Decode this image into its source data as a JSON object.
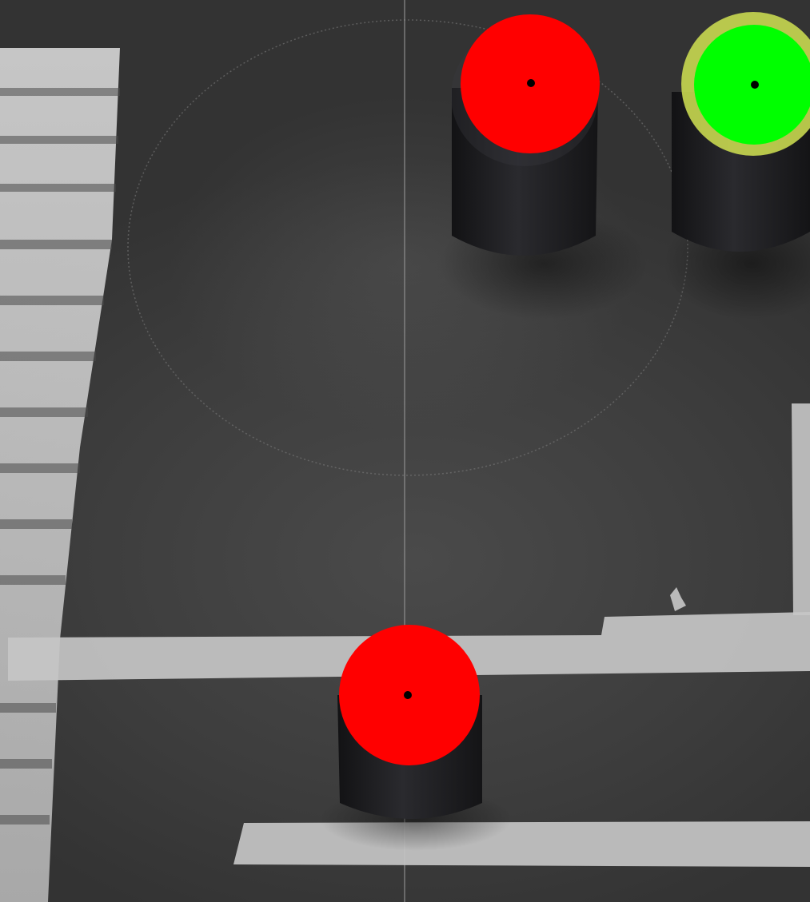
{
  "scene": {
    "description_kind": "top-down photo of cylindrical pucks on a dark mat",
    "colors": {
      "mat": "#404040",
      "tape": "#c9c9c9",
      "puck_body": "#1f1f22",
      "marker_red": "#ff0000",
      "marker_green": "#00ff00",
      "center_dot": "#000000"
    },
    "markers": [
      {
        "id": "red-marker-top",
        "color": "red"
      },
      {
        "id": "green-marker-top-right",
        "color": "green"
      },
      {
        "id": "red-marker-bottom",
        "color": "red"
      }
    ]
  }
}
